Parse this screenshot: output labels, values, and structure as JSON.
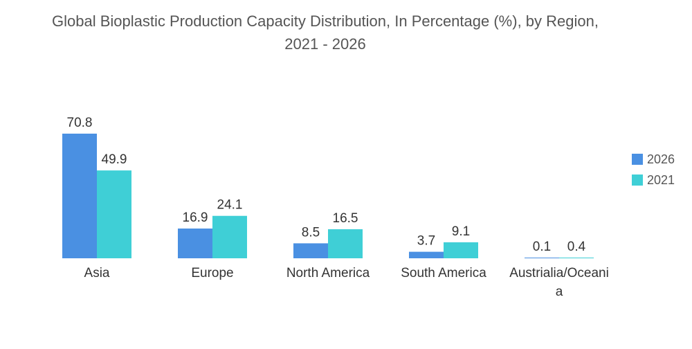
{
  "chart_data": {
    "type": "bar",
    "title": "Global Bioplastic Production Capacity Distribution, In Percentage (%), by Region, 2021 - 2026",
    "categories": [
      "Asia",
      "Europe",
      "North America",
      "South America",
      "Austrialia/Oceania"
    ],
    "category_label_lines": [
      [
        "Asia"
      ],
      [
        "Europe"
      ],
      [
        "North America"
      ],
      [
        "South America"
      ],
      [
        "Austrialia/Oceani",
        "a"
      ]
    ],
    "series": [
      {
        "name": "2026",
        "color": "#4a90e2",
        "values": [
          70.8,
          16.9,
          8.5,
          3.7,
          0.1
        ],
        "labels": [
          "70.8",
          "16.9",
          "8.5",
          "3.7",
          "0.1"
        ]
      },
      {
        "name": "2021",
        "color": "#3fcfd6",
        "values": [
          49.9,
          24.1,
          16.5,
          9.1,
          0.4
        ],
        "labels": [
          "49.9",
          "24.1",
          "16.5",
          "9.1",
          "0.4"
        ]
      }
    ],
    "xlabel": "",
    "ylabel": "",
    "ylim": [
      0,
      70.8
    ],
    "grid": false,
    "legend": "right"
  }
}
